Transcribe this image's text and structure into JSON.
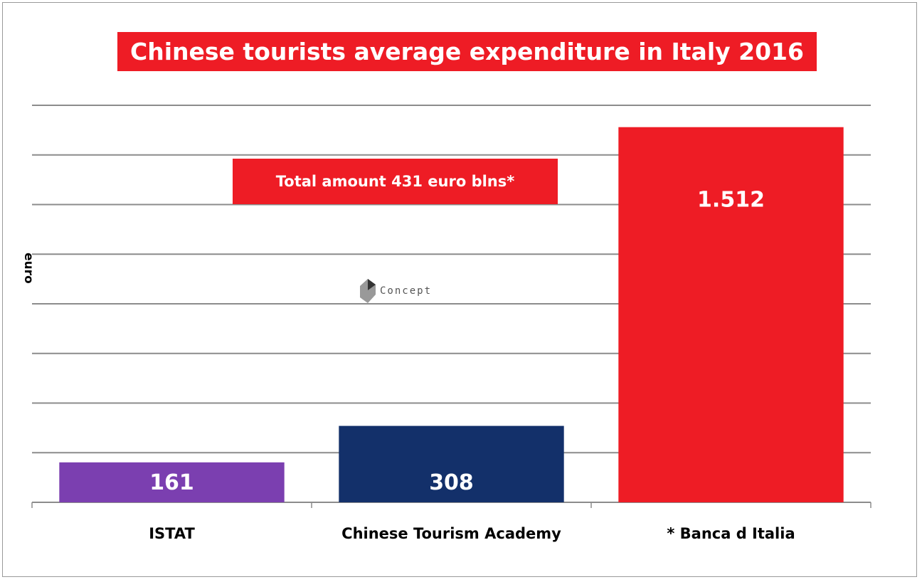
{
  "chart_data": {
    "type": "bar",
    "title": "Chinese tourists average expenditure in Italy 2016",
    "annotation": "Total amount 431 euro blns*",
    "ylabel": "euro",
    "xlabel": "",
    "categories": [
      "ISTAT",
      "Chinese Tourism Academy",
      "* Banca d Italia"
    ],
    "values": [
      161,
      308,
      1512
    ],
    "value_labels": [
      "161",
      "308",
      "1.512"
    ],
    "colors": [
      "#7b3fb0",
      "#13306a",
      "#ee1c25"
    ],
    "ylim": [
      0,
      1600
    ],
    "grid": true,
    "y_tick_step": 200
  },
  "logo": {
    "text": "Concept"
  }
}
